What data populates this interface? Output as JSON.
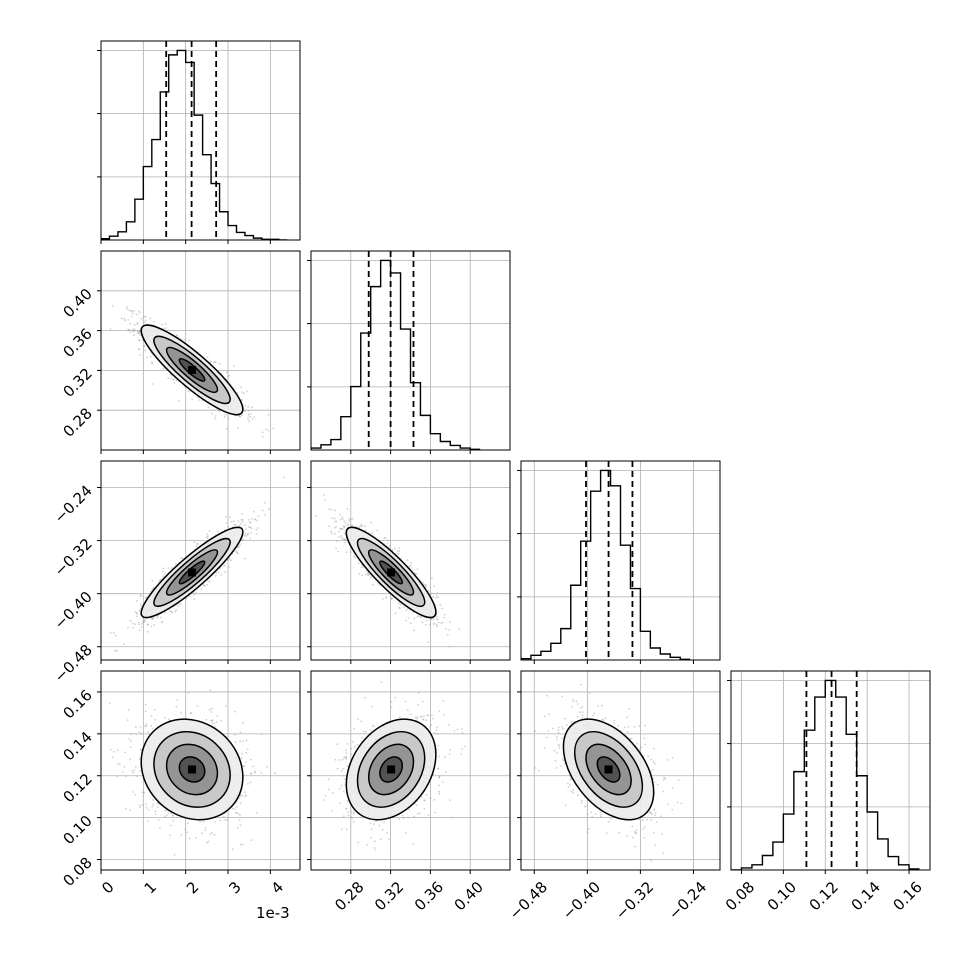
{
  "chart_data": {
    "type": "corner",
    "grid": true,
    "x_offset_text": "1e-3",
    "panels": [
      {
        "row": 0,
        "col": 0,
        "type": "histogram",
        "xlim": [
          0,
          4.7
        ],
        "bins": [
          0.1,
          0.3,
          0.5,
          0.7,
          0.9,
          1.1,
          1.3,
          1.5,
          1.7,
          1.9,
          2.1,
          2.3,
          2.5,
          2.7,
          2.9,
          3.1,
          3.3,
          3.5,
          3.7,
          3.9,
          4.1,
          4.3
        ],
        "counts": [
          2,
          6,
          13,
          29,
          65,
          117,
          160,
          236,
          295,
          302,
          283,
          199,
          136,
          90,
          45,
          23,
          12,
          7,
          3,
          1,
          1,
          0
        ],
        "quantiles": [
          1.54,
          2.14,
          2.72
        ]
      },
      {
        "row": 1,
        "col": 1,
        "type": "histogram",
        "xlim": [
          0.24,
          0.44
        ],
        "bins": [
          0.245,
          0.255,
          0.265,
          0.275,
          0.285,
          0.295,
          0.305,
          0.315,
          0.325,
          0.335,
          0.345,
          0.355,
          0.365,
          0.375,
          0.385,
          0.395,
          0.405
        ],
        "counts": [
          3,
          8,
          16,
          51,
          97,
          179,
          250,
          290,
          271,
          185,
          103,
          53,
          25,
          13,
          7,
          3,
          1
        ],
        "quantiles": [
          0.298,
          0.32,
          0.343
        ]
      },
      {
        "row": 2,
        "col": 2,
        "type": "histogram",
        "xlim": [
          -0.5,
          -0.2
        ],
        "bins": [
          -0.4925,
          -0.4775,
          -0.4625,
          -0.4475,
          -0.4325,
          -0.4175,
          -0.4025,
          -0.3875,
          -0.3725,
          -0.3575,
          -0.3425,
          -0.3275,
          -0.3125,
          -0.2975,
          -0.2825,
          -0.2675,
          -0.2525
        ],
        "counts": [
          2,
          7,
          13,
          25,
          47,
          112,
          178,
          253,
          284,
          261,
          172,
          107,
          43,
          18,
          9,
          4,
          1
        ],
        "quantiles": [
          -0.402,
          -0.368,
          -0.332
        ]
      },
      {
        "row": 3,
        "col": 3,
        "type": "histogram",
        "xlim": [
          0.075,
          0.17
        ],
        "bins": [
          0.0775,
          0.0825,
          0.0875,
          0.0925,
          0.0975,
          0.1025,
          0.1075,
          0.1125,
          0.1175,
          0.1225,
          0.1275,
          0.1325,
          0.1375,
          0.1425,
          0.1475,
          0.1525,
          0.1575,
          0.1625
        ],
        "counts": [
          0,
          2,
          5,
          14,
          27,
          54,
          95,
          135,
          167,
          183,
          167,
          131,
          91,
          56,
          30,
          13,
          5,
          1
        ],
        "quantiles": [
          0.111,
          0.123,
          0.135
        ]
      },
      {
        "row": 1,
        "col": 0,
        "type": "2d",
        "xlim": [
          0,
          4.7
        ],
        "ylim": [
          0.24,
          0.44
        ],
        "center": [
          2.15,
          0.3205
        ],
        "sigma": [
          0.6,
          0.0225
        ],
        "rho": -0.88
      },
      {
        "row": 2,
        "col": 0,
        "type": "2d",
        "xlim": [
          0,
          4.7
        ],
        "ylim": [
          -0.5,
          -0.2
        ],
        "center": [
          2.15,
          -0.368
        ],
        "sigma": [
          0.6,
          0.034
        ],
        "rho": 0.9
      },
      {
        "row": 2,
        "col": 1,
        "type": "2d",
        "xlim": [
          0.24,
          0.44
        ],
        "ylim": [
          -0.5,
          -0.2
        ],
        "center": [
          0.3205,
          -0.368
        ],
        "sigma": [
          0.0225,
          0.034
        ],
        "rho": -0.88
      },
      {
        "row": 3,
        "col": 0,
        "type": "2d",
        "xlim": [
          0,
          4.7
        ],
        "ylim": [
          0.075,
          0.17
        ],
        "center": [
          2.15,
          0.123
        ],
        "sigma": [
          0.6,
          0.012
        ],
        "rho": -0.15
      },
      {
        "row": 3,
        "col": 1,
        "type": "2d",
        "xlim": [
          0.24,
          0.44
        ],
        "ylim": [
          0.075,
          0.17
        ],
        "center": [
          0.3205,
          0.123
        ],
        "sigma": [
          0.0225,
          0.012
        ],
        "rho": 0.3
      },
      {
        "row": 3,
        "col": 2,
        "type": "2d",
        "xlim": [
          -0.5,
          -0.2
        ],
        "ylim": [
          0.075,
          0.17
        ],
        "center": [
          -0.368,
          0.123
        ],
        "sigma": [
          0.034,
          0.012
        ],
        "rho": -0.45
      }
    ],
    "x_ticks": [
      {
        "values": [
          0,
          1,
          2,
          3,
          4
        ],
        "labels": [
          "0",
          "1",
          "2",
          "3",
          "4"
        ]
      },
      {
        "values": [
          0.28,
          0.32,
          0.36,
          0.4
        ],
        "labels": [
          "0.28",
          "0.32",
          "0.36",
          "0.40"
        ]
      },
      {
        "values": [
          -0.48,
          -0.4,
          -0.32,
          -0.24
        ],
        "labels": [
          "−0.48",
          "−0.40",
          "−0.32",
          "−0.24"
        ]
      },
      {
        "values": [
          0.08,
          0.1,
          0.12,
          0.14,
          0.16
        ],
        "labels": [
          "0.08",
          "0.10",
          "0.12",
          "0.14",
          "0.16"
        ]
      }
    ],
    "y_ticks": [
      null,
      {
        "values": [
          0.28,
          0.32,
          0.36,
          0.4
        ],
        "labels": [
          "0.28",
          "0.32",
          "0.36",
          "0.40"
        ]
      },
      {
        "values": [
          -0.48,
          -0.4,
          -0.32,
          -0.24
        ],
        "labels": [
          "−0.48",
          "−0.40",
          "−0.32",
          "−0.24"
        ]
      },
      {
        "values": [
          0.08,
          0.1,
          0.12,
          0.14,
          0.16
        ],
        "labels": [
          "0.08",
          "0.10",
          "0.12",
          "0.14",
          "0.16"
        ]
      }
    ],
    "contour_levels_sigma": [
      0.5,
      1.0,
      1.5,
      2.0
    ],
    "colors": {
      "axes": "#000000",
      "grid": "#b0b0b0",
      "line": "#000000",
      "scatter": "#9a9a9a",
      "background": "#ffffff"
    }
  }
}
